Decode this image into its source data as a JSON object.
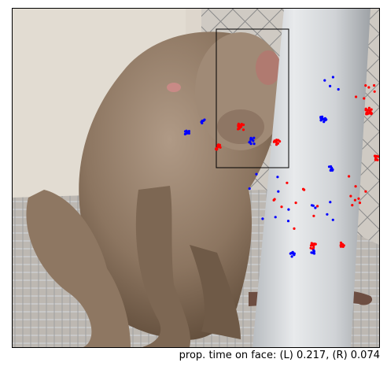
{
  "caption": "prop. time on face: (L) 0.217, (R) 0.074",
  "colors": {
    "left_gaze": "#ff0000",
    "right_gaze": "#0000ff",
    "face_box": "#000000"
  },
  "scene": {
    "subject": "rhesus macaque sitting on wire-mesh floor",
    "background": "chain-link fence and vertical white pipe"
  }
}
